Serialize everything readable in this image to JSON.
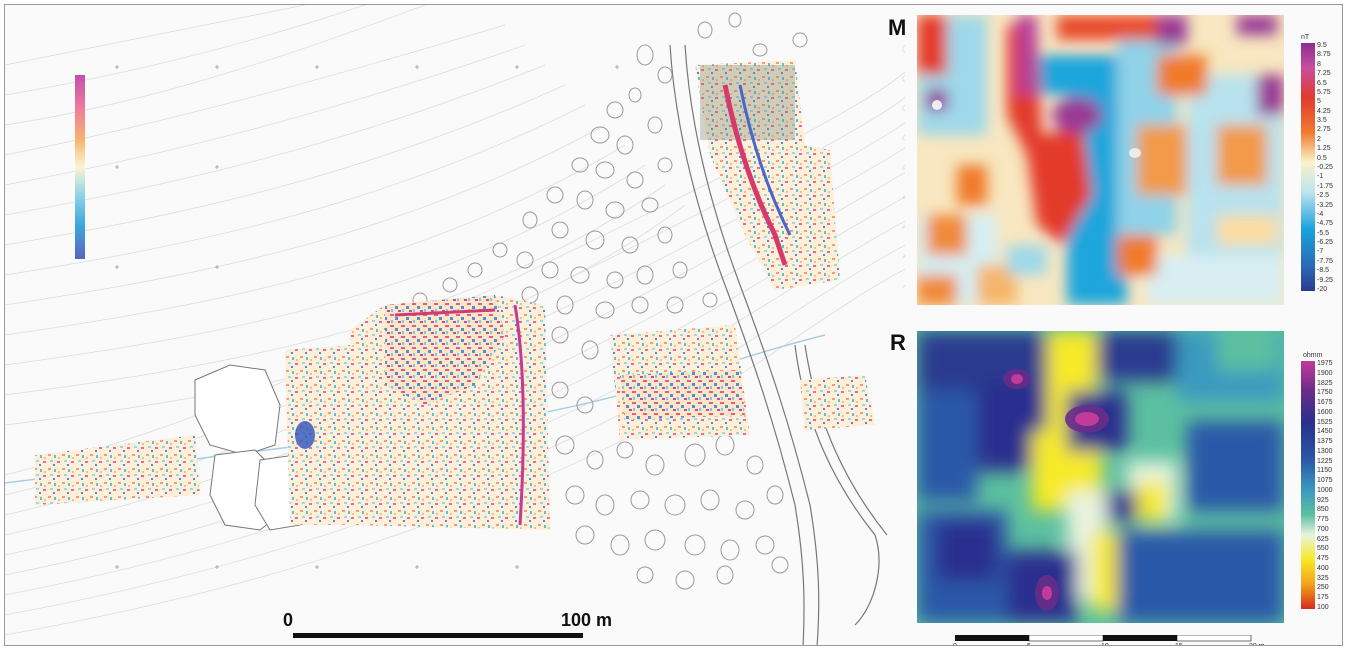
{
  "main_scale_bar": {
    "start_label": "0",
    "end_label": "100 m"
  },
  "panel_m": {
    "label": "M",
    "unit": "nT",
    "ticks": [
      "9.5",
      "8.75",
      "8",
      "7.25",
      "6.5",
      "5.75",
      "5",
      "4.25",
      "3.5",
      "2.75",
      "2",
      "1.25",
      "0.5",
      "-0.25",
      "-1",
      "-1.75",
      "-2.5",
      "-3.25",
      "-4",
      "-4.75",
      "-5.5",
      "-6.25",
      "-7",
      "-7.75",
      "-8.5",
      "-9.25",
      "-20"
    ]
  },
  "panel_r": {
    "label": "R",
    "unit": "ohmm",
    "ticks": [
      "1975",
      "1900",
      "1825",
      "1750",
      "1675",
      "1600",
      "1525",
      "1450",
      "1375",
      "1300",
      "1225",
      "1150",
      "1075",
      "1000",
      "925",
      "850",
      "775",
      "700",
      "625",
      "550",
      "475",
      "400",
      "325",
      "250",
      "175",
      "100"
    ]
  },
  "panel_scale_bar": {
    "labels": [
      "0",
      "5",
      "10",
      "15",
      "20 m"
    ]
  },
  "colors": {
    "magnetic_ramp": [
      "#8a2f8f",
      "#c84e9e",
      "#e23a2e",
      "#f07a2e",
      "#f7c98a",
      "#fbf2c8",
      "#d8eef3",
      "#6cc6e0",
      "#1aa3dc",
      "#2a6ab5",
      "#2a3b8f"
    ],
    "resistivity_ramp": [
      "#c23a9a",
      "#6a2d8a",
      "#2a2f8e",
      "#2b58a8",
      "#3a9ac0",
      "#5cc0a0",
      "#e8f3e0",
      "#f7ea25",
      "#f4c21c",
      "#e8561c",
      "#d62b1e"
    ]
  }
}
